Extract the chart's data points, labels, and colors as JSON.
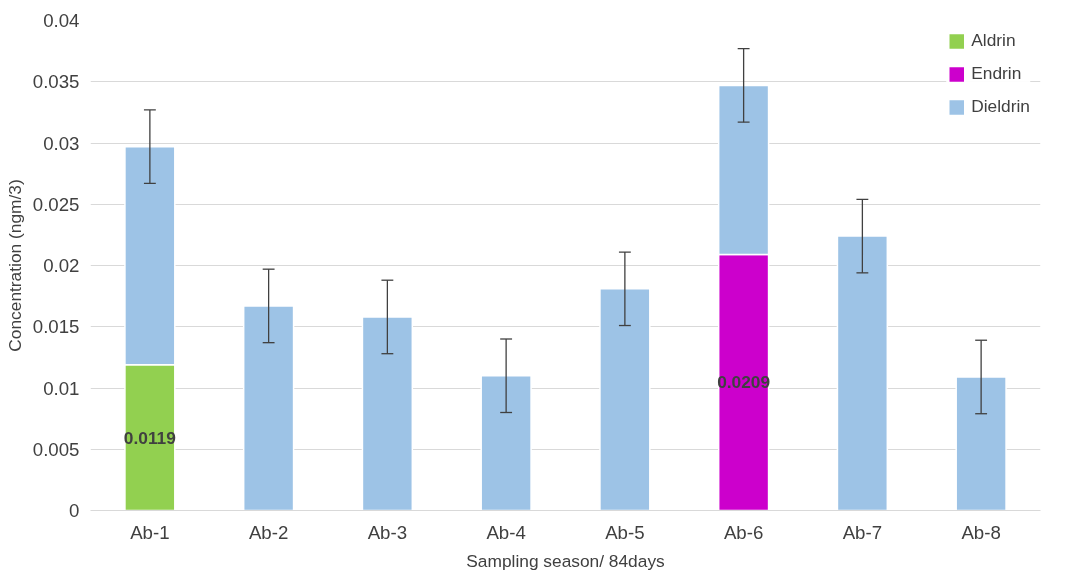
{
  "chart_data": {
    "type": "bar",
    "stacked": true,
    "xlabel": "Sampling season/ 84days",
    "ylabel": "Concentration (ngm/3)",
    "categories": [
      "Ab-1",
      "Ab-2",
      "Ab-3",
      "Ab-4",
      "Ab-5",
      "Ab-6",
      "Ab-7",
      "Ab-8"
    ],
    "series": [
      {
        "name": "Aldrin",
        "color": "#92d050",
        "values": [
          0.0119,
          null,
          null,
          null,
          null,
          null,
          null,
          null
        ],
        "value_labels": [
          "0.0119",
          null,
          null,
          null,
          null,
          null,
          null,
          null
        ]
      },
      {
        "name": "Endrin",
        "color": "#cc00cc",
        "values": [
          null,
          null,
          null,
          null,
          null,
          0.0209,
          null,
          null
        ],
        "value_labels": [
          null,
          null,
          null,
          null,
          null,
          "0.0209",
          null,
          null
        ]
      },
      {
        "name": "Dieldrin",
        "color": "#9dc3e6",
        "values": [
          0.0178,
          0.0167,
          0.0158,
          0.011,
          0.0181,
          0.0138,
          0.0224,
          0.0109
        ],
        "errors": [
          0.003,
          0.003,
          0.003,
          0.003,
          0.003,
          0.003,
          0.003,
          0.003
        ]
      }
    ],
    "ylim": [
      0,
      0.04
    ],
    "yticks": [
      0,
      0.005,
      0.01,
      0.015,
      0.02,
      0.025,
      0.03,
      0.035,
      0.04
    ],
    "grid": "y",
    "legend": "top right"
  }
}
